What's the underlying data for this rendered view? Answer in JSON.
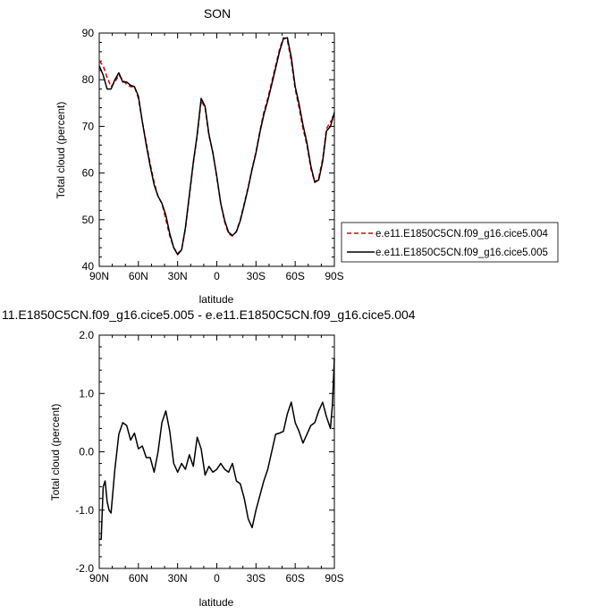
{
  "charts": [
    {
      "type": "line",
      "title": "SON",
      "xlabel": "latitude",
      "ylabel": "Total cloud (percent)",
      "xlim": [
        90,
        -90
      ],
      "ylim": [
        40,
        90
      ],
      "xticks": [
        {
          "v": 90,
          "label": "90N"
        },
        {
          "v": 60,
          "label": "60N"
        },
        {
          "v": 30,
          "label": "30N"
        },
        {
          "v": 0,
          "label": "0"
        },
        {
          "v": -30,
          "label": "30S"
        },
        {
          "v": -60,
          "label": "60S"
        },
        {
          "v": -90,
          "label": "90S"
        }
      ],
      "yticks": [
        {
          "v": 40,
          "label": "40"
        },
        {
          "v": 50,
          "label": "50"
        },
        {
          "v": 60,
          "label": "60"
        },
        {
          "v": 70,
          "label": "70"
        },
        {
          "v": 80,
          "label": "80"
        },
        {
          "v": 90,
          "label": "90"
        }
      ],
      "grid": false,
      "legend": "right",
      "series": [
        {
          "name": "e.e11.E1850C5CN.f09_g16.cice5.004",
          "color": "#dd0000",
          "dash": "5,3",
          "x": [
            90,
            87,
            84,
            81,
            78,
            75,
            72,
            69,
            66,
            63,
            60,
            57,
            54,
            51,
            48,
            45,
            42,
            39,
            36,
            33,
            30,
            27,
            24,
            21,
            18,
            15,
            12,
            9,
            6,
            3,
            0,
            -3,
            -6,
            -9,
            -12,
            -15,
            -18,
            -21,
            -24,
            -27,
            -30,
            -33,
            -36,
            -39,
            -42,
            -45,
            -48,
            -51,
            -54,
            -57,
            -60,
            -63,
            -66,
            -69,
            -72,
            -75,
            -78,
            -81,
            -84,
            -87,
            -90
          ],
          "y": [
            84,
            83,
            80.5,
            78.5,
            79.5,
            81,
            80,
            79,
            78.5,
            78.5,
            76,
            71,
            66.5,
            62,
            58,
            55,
            53.5,
            50,
            46.5,
            44,
            42.8,
            43.5,
            48,
            55,
            62,
            68,
            75.5,
            74,
            68,
            64.5,
            59,
            53.5,
            49.5,
            47,
            46.5,
            47.5,
            50,
            53.5,
            57,
            61,
            64.5,
            69,
            73,
            76,
            79.5,
            83,
            86.5,
            89,
            88.5,
            84,
            78,
            74,
            69.5,
            66,
            61,
            58,
            59,
            63,
            69.5,
            71,
            72
          ]
        },
        {
          "name": "e.e11.E1850C5CN.f09_g16.cice5.005",
          "color": "#000000",
          "dash": "",
          "x": [
            90,
            87,
            84,
            81,
            78,
            75,
            72,
            69,
            66,
            63,
            60,
            57,
            54,
            51,
            48,
            45,
            42,
            39,
            36,
            33,
            30,
            27,
            24,
            21,
            18,
            15,
            12,
            9,
            6,
            3,
            0,
            -3,
            -6,
            -9,
            -12,
            -15,
            -18,
            -21,
            -24,
            -27,
            -30,
            -33,
            -36,
            -39,
            -42,
            -45,
            -48,
            -51,
            -54,
            -57,
            -60,
            -63,
            -66,
            -69,
            -72,
            -75,
            -78,
            -81,
            -84,
            -87,
            -90
          ],
          "y": [
            83,
            81,
            78,
            78,
            80,
            81.5,
            79.5,
            79.5,
            78.8,
            78.5,
            76.5,
            71,
            66,
            61.5,
            57.5,
            55,
            53.5,
            51,
            47,
            44,
            42.5,
            43.5,
            48.3,
            55.3,
            62.3,
            68.3,
            76,
            74.3,
            68.3,
            64.3,
            59.3,
            53.5,
            49.8,
            47.3,
            46.6,
            47.4,
            49.8,
            53.2,
            56.8,
            60.8,
            64.3,
            68.7,
            72.5,
            75.5,
            79,
            82.5,
            86,
            88.8,
            89,
            84.8,
            78.5,
            74.8,
            70.3,
            66.5,
            61.5,
            58,
            58.5,
            62.5,
            69,
            70,
            73
          ]
        }
      ]
    },
    {
      "type": "line",
      "title": "11.E1850C5CN.f09_g16.cice5.005 - e.e11.E1850C5CN.f09_g16.cice5.004",
      "xlabel": "latitude",
      "ylabel": "Total cloud (percent)",
      "xlim": [
        90,
        -90
      ],
      "ylim": [
        -2,
        2
      ],
      "xticks": [
        {
          "v": 90,
          "label": "90N"
        },
        {
          "v": 60,
          "label": "60N"
        },
        {
          "v": 30,
          "label": "30N"
        },
        {
          "v": 0,
          "label": "0"
        },
        {
          "v": -30,
          "label": "30S"
        },
        {
          "v": -60,
          "label": "60S"
        },
        {
          "v": -90,
          "label": "90S"
        }
      ],
      "yticks": [
        {
          "v": -2,
          "label": "-2.0"
        },
        {
          "v": -1,
          "label": "-1.0"
        },
        {
          "v": 0,
          "label": "0.0"
        },
        {
          "v": 1,
          "label": "1.0"
        },
        {
          "v": 2,
          "label": "2.0"
        }
      ],
      "grid": false,
      "series": [
        {
          "name": "",
          "color": "#000000",
          "dash": "",
          "x": [
            90,
            88.5,
            87,
            85.5,
            84,
            82.5,
            81,
            78,
            75,
            72,
            69,
            66,
            63,
            60,
            57,
            54,
            51,
            48,
            45,
            42,
            39,
            36,
            33,
            30,
            27,
            24,
            21,
            18,
            15,
            12,
            9,
            6,
            3,
            0,
            -3,
            -6,
            -9,
            -12,
            -15,
            -18,
            -21,
            -24,
            -27,
            -30,
            -33,
            -36,
            -39,
            -42,
            -45,
            -48,
            -51,
            -54,
            -57,
            -60,
            -63,
            -66,
            -69,
            -72,
            -75,
            -78,
            -81,
            -84,
            -87,
            -88.5,
            -90
          ],
          "y": [
            -1.5,
            -1.5,
            -0.6,
            -0.5,
            -0.85,
            -1.0,
            -1.05,
            -0.3,
            0.3,
            0.5,
            0.45,
            0.2,
            0.32,
            0.05,
            0.1,
            -0.1,
            -0.1,
            -0.35,
            0.0,
            0.5,
            0.7,
            0.35,
            -0.2,
            -0.35,
            -0.2,
            -0.3,
            -0.05,
            -0.25,
            0.25,
            0.05,
            -0.4,
            -0.25,
            -0.35,
            -0.3,
            -0.2,
            -0.3,
            -0.35,
            -0.2,
            -0.5,
            -0.55,
            -0.8,
            -1.15,
            -1.3,
            -1.0,
            -0.75,
            -0.5,
            -0.3,
            0.0,
            0.3,
            0.32,
            0.35,
            0.65,
            0.85,
            0.5,
            0.35,
            0.15,
            0.3,
            0.45,
            0.5,
            0.7,
            0.85,
            0.6,
            0.4,
            0.8,
            1.6
          ]
        }
      ]
    }
  ]
}
